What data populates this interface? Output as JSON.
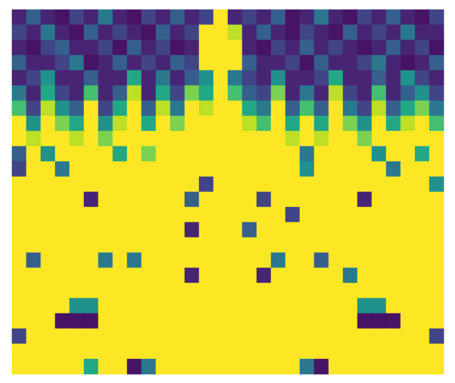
{
  "chart_data": {
    "type": "heatmap",
    "color": "viridis",
    "zlim": [
      0,
      1
    ],
    "tick_labels": false,
    "cells": [
      [
        0.1,
        0.3,
        0.1,
        0.05,
        0.2,
        0.1,
        0.4,
        0.1,
        0.05,
        0.2,
        0.1,
        0.3,
        0.1,
        0.2,
        1,
        0.1,
        0.2,
        0.1,
        0.3,
        0.05,
        0.1,
        0.4,
        0.1,
        0.05,
        0.2,
        0.1,
        0.3,
        0.1,
        0.05,
        0.2
      ],
      [
        0.2,
        0.1,
        0.4,
        0.1,
        0.05,
        0.3,
        0.1,
        0.2,
        0.1,
        0.05,
        0.3,
        0.1,
        0.2,
        1,
        1,
        0.9,
        0.1,
        0.3,
        0.1,
        0.05,
        0.2,
        0.1,
        0.05,
        0.3,
        0.1,
        0.2,
        0.1,
        0.4,
        0.1,
        0.1
      ],
      [
        0.1,
        0.05,
        0.2,
        0.3,
        0.1,
        0.1,
        0.2,
        0.05,
        0.3,
        0.1,
        0.2,
        0.05,
        0.1,
        1,
        1,
        1,
        0.1,
        0.05,
        0.2,
        0.1,
        0.3,
        0.1,
        0.2,
        0.1,
        0.05,
        0.1,
        0.3,
        0.1,
        0.2,
        0.05
      ],
      [
        0.3,
        0.1,
        0.1,
        0.2,
        0.4,
        0.05,
        0.1,
        0.3,
        0.1,
        0.2,
        0.1,
        0.3,
        0.2,
        1,
        1,
        1,
        0.3,
        0.1,
        0.1,
        0.2,
        0.05,
        0.3,
        0.1,
        0.1,
        0.2,
        0.4,
        0.1,
        0.05,
        0.1,
        0.3
      ],
      [
        0.1,
        0.2,
        0.5,
        0.1,
        0.1,
        0.3,
        0.1,
        0.1,
        0.6,
        0.1,
        0.4,
        0.1,
        0.3,
        0.5,
        1,
        0.4,
        0.2,
        0.1,
        0.5,
        0.1,
        0.1,
        0.2,
        0.6,
        0.1,
        0.1,
        0.3,
        0.1,
        0.5,
        0.2,
        0.1
      ],
      [
        0.4,
        0.1,
        0.6,
        0.2,
        0.1,
        0.7,
        0.1,
        0.3,
        0.9,
        0.1,
        0.6,
        0.2,
        0.8,
        0.6,
        1,
        0.7,
        0.3,
        0.2,
        0.8,
        0.1,
        0.4,
        0.1,
        0.9,
        0.2,
        0.1,
        0.7,
        0.1,
        0.3,
        0.5,
        0.2
      ],
      [
        0.7,
        0.2,
        0.9,
        0.5,
        0.3,
        1,
        0.2,
        0.6,
        1,
        0.3,
        0.9,
        0.4,
        1,
        0.9,
        1,
        1,
        0.6,
        0.4,
        1,
        0.3,
        0.7,
        0.3,
        1,
        0.4,
        0.2,
        0.9,
        0.3,
        0.6,
        0.8,
        0.4
      ],
      [
        1,
        0.5,
        1,
        0.8,
        0.6,
        1,
        0.5,
        0.9,
        1,
        0.6,
        1,
        0.8,
        1,
        1,
        1,
        1,
        0.9,
        0.7,
        1,
        0.6,
        1,
        0.6,
        1,
        0.8,
        0.5,
        1,
        0.6,
        0.9,
        1,
        0.7
      ],
      [
        1,
        0.9,
        1,
        1,
        0.9,
        1,
        0.8,
        1,
        1,
        1,
        1,
        1,
        1,
        1,
        1,
        1,
        1,
        1,
        1,
        0.9,
        1,
        0.9,
        1,
        1,
        0.8,
        1,
        1,
        1,
        1,
        1
      ],
      [
        0.3,
        1,
        0.5,
        1,
        1,
        1,
        1,
        0.6,
        1,
        0.8,
        1,
        1,
        1,
        1,
        1,
        1,
        1,
        1,
        1,
        1,
        0.4,
        1,
        1,
        1,
        1,
        0.5,
        1,
        1,
        0.6,
        1
      ],
      [
        0.2,
        1,
        1,
        0.4,
        1,
        1,
        1,
        1,
        1,
        1,
        1,
        1,
        1,
        1,
        1,
        1,
        1,
        1,
        1,
        1,
        0.5,
        1,
        1,
        1,
        1,
        1,
        0.4,
        1,
        1,
        1
      ],
      [
        1,
        1,
        1,
        1,
        1,
        1,
        1,
        1,
        1,
        1,
        1,
        1,
        1,
        0.2,
        1,
        1,
        1,
        1,
        1,
        1,
        1,
        1,
        1,
        1,
        1,
        1,
        1,
        1,
        1,
        0.5
      ],
      [
        1,
        1,
        1,
        1,
        1,
        0.1,
        1,
        1,
        1,
        1,
        1,
        1,
        0.3,
        1,
        1,
        1,
        1,
        0.2,
        1,
        1,
        1,
        1,
        1,
        1,
        0.1,
        1,
        1,
        1,
        1,
        1
      ],
      [
        1,
        1,
        1,
        1,
        1,
        1,
        1,
        1,
        1,
        1,
        1,
        1,
        1,
        1,
        1,
        1,
        1,
        1,
        1,
        0.2,
        1,
        1,
        1,
        1,
        1,
        1,
        1,
        1,
        1,
        1
      ],
      [
        1,
        1,
        1,
        1,
        1,
        1,
        1,
        1,
        1,
        1,
        1,
        1,
        0.1,
        1,
        1,
        1,
        0.3,
        1,
        1,
        1,
        1,
        1,
        1,
        1,
        1,
        1,
        1,
        1,
        1,
        1
      ],
      [
        1,
        1,
        1,
        1,
        1,
        1,
        1,
        1,
        1,
        1,
        1,
        1,
        1,
        1,
        1,
        1,
        1,
        1,
        1,
        1,
        1,
        1,
        1,
        1,
        1,
        1,
        1,
        1,
        1,
        1
      ],
      [
        1,
        0.3,
        1,
        1,
        1,
        1,
        0.4,
        1,
        0.4,
        1,
        1,
        1,
        1,
        1,
        1,
        1,
        1,
        1,
        0.4,
        1,
        1,
        0.3,
        1,
        1,
        1,
        1,
        1,
        1,
        1,
        1
      ],
      [
        1,
        1,
        1,
        1,
        1,
        1,
        1,
        1,
        1,
        1,
        1,
        1,
        0.1,
        1,
        1,
        1,
        1,
        0.1,
        1,
        1,
        1,
        1,
        1,
        0.4,
        1,
        1,
        1,
        1,
        1,
        1
      ],
      [
        1,
        1,
        1,
        1,
        1,
        1,
        1,
        1,
        1,
        1,
        1,
        1,
        1,
        1,
        1,
        1,
        1,
        1,
        1,
        1,
        1,
        1,
        1,
        1,
        1,
        1,
        1,
        1,
        1,
        1
      ],
      [
        1,
        1,
        1,
        1,
        0.5,
        0.5,
        1,
        1,
        1,
        1,
        1,
        1,
        1,
        1,
        1,
        1,
        1,
        1,
        1,
        1,
        1,
        1,
        1,
        1,
        0.5,
        0.5,
        1,
        1,
        1,
        1
      ],
      [
        1,
        1,
        1,
        0.05,
        0.05,
        0.05,
        1,
        1,
        1,
        1,
        1,
        1,
        1,
        1,
        1,
        1,
        1,
        1,
        1,
        1,
        1,
        1,
        1,
        1,
        0.05,
        0.05,
        0.05,
        1,
        1,
        1
      ],
      [
        0.2,
        1,
        1,
        1,
        1,
        1,
        1,
        1,
        1,
        1,
        1,
        1,
        1,
        1,
        1,
        1,
        1,
        1,
        1,
        1,
        1,
        1,
        1,
        1,
        1,
        1,
        1,
        1,
        1,
        0.2
      ],
      [
        1,
        1,
        1,
        1,
        1,
        1,
        1,
        1,
        1,
        1,
        1,
        1,
        1,
        1,
        1,
        1,
        1,
        1,
        1,
        1,
        1,
        1,
        1,
        1,
        1,
        1,
        1,
        1,
        1,
        1
      ],
      [
        1,
        1,
        1,
        1,
        1,
        0.6,
        1,
        1,
        0.05,
        0.4,
        1,
        1,
        1,
        1,
        1,
        1,
        1,
        1,
        1,
        1,
        0.4,
        0.05,
        1,
        1,
        1,
        1,
        1,
        1,
        1,
        1
      ]
    ]
  }
}
